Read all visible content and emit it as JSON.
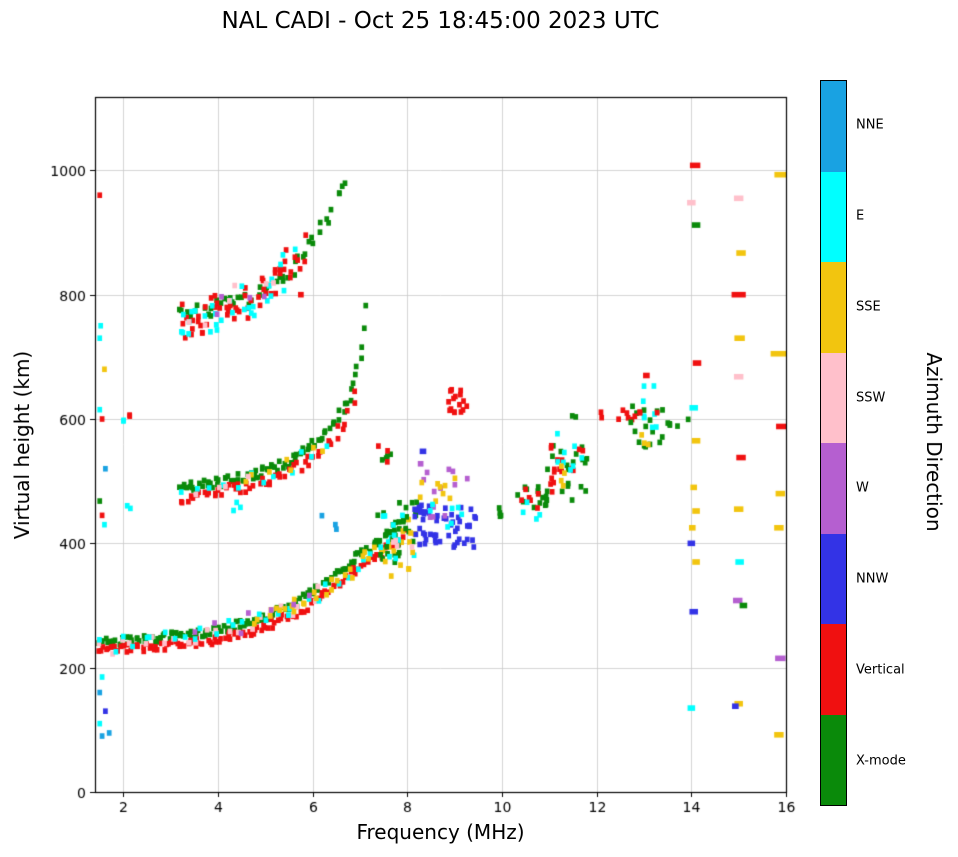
{
  "chart_data": {
    "type": "scatter",
    "title": "NAL CADI - Oct 25 18:45:00 2023 UTC",
    "xlabel": "Frequency (MHz)",
    "ylabel": "Virtual height (km)",
    "colorbar_label": "Azimuth Direction",
    "xlim": [
      1.4,
      16.0
    ],
    "ylim": [
      0,
      1118
    ],
    "xticks": [
      2,
      4,
      6,
      8,
      10,
      12,
      14,
      16
    ],
    "yticks": [
      0,
      200,
      400,
      600,
      800,
      1000
    ],
    "grid": true,
    "legend_position": "right-colorbar",
    "marker": {
      "width_mhz": 0.1,
      "height_km": 9
    },
    "categories": [
      {
        "name": "NNE",
        "color": "#19A2E2"
      },
      {
        "name": "E",
        "color": "#00FFFF"
      },
      {
        "name": "SSE",
        "color": "#F2C50F"
      },
      {
        "name": "SSW",
        "color": "#FFC0CB"
      },
      {
        "name": "W",
        "color": "#B55FD0"
      },
      {
        "name": "NNW",
        "color": "#3333E6"
      },
      {
        "name": "Vertical",
        "color": "#F01010"
      },
      {
        "name": "X-mode",
        "color": "#0A8A0A"
      }
    ],
    "traces": [
      {
        "name": "first-hop X-mode",
        "cat": "X-mode",
        "n": 150,
        "jf": 0.06,
        "jh": 7,
        "points": [
          [
            1.45,
            240
          ],
          [
            2.0,
            244
          ],
          [
            2.6,
            247
          ],
          [
            3.2,
            251
          ],
          [
            3.8,
            257
          ],
          [
            4.3,
            265
          ],
          [
            4.8,
            276
          ],
          [
            5.2,
            288
          ],
          [
            5.6,
            303
          ],
          [
            6.0,
            322
          ],
          [
            6.4,
            344
          ],
          [
            6.8,
            368
          ],
          [
            7.2,
            392
          ],
          [
            7.6,
            415
          ],
          [
            7.95,
            438
          ]
        ]
      },
      {
        "name": "first-hop vertical",
        "cat": "Vertical",
        "n": 120,
        "jf": 0.06,
        "jh": 7,
        "points": [
          [
            1.45,
            226
          ],
          [
            2.0,
            230
          ],
          [
            2.6,
            233
          ],
          [
            3.2,
            237
          ],
          [
            3.8,
            243
          ],
          [
            4.3,
            251
          ],
          [
            4.8,
            261
          ],
          [
            5.2,
            272
          ],
          [
            5.6,
            286
          ],
          [
            6.0,
            304
          ],
          [
            6.4,
            325
          ],
          [
            6.8,
            348
          ],
          [
            7.2,
            372
          ],
          [
            7.6,
            394
          ],
          [
            7.95,
            415
          ]
        ]
      },
      {
        "name": "first-hop SSW",
        "cat": "SSW",
        "n": 22,
        "jf": 0.1,
        "jh": 12,
        "points": [
          [
            1.5,
            232
          ],
          [
            2.5,
            240
          ],
          [
            3.5,
            250
          ],
          [
            4.5,
            266
          ],
          [
            5.5,
            295
          ],
          [
            6.2,
            330
          ]
        ]
      },
      {
        "name": "first-hop E",
        "cat": "E",
        "n": 30,
        "jf": 0.12,
        "jh": 14,
        "points": [
          [
            1.6,
            238
          ],
          [
            3.0,
            248
          ],
          [
            4.5,
            268
          ],
          [
            5.5,
            295
          ],
          [
            6.3,
            335
          ],
          [
            6.8,
            360
          ],
          [
            7.2,
            385
          ],
          [
            7.7,
            408
          ]
        ]
      },
      {
        "name": "first-hop SSE",
        "cat": "SSE",
        "n": 32,
        "jf": 0.12,
        "jh": 14,
        "points": [
          [
            4.8,
            272
          ],
          [
            5.6,
            298
          ],
          [
            6.2,
            325
          ],
          [
            6.7,
            352
          ],
          [
            7.1,
            378
          ],
          [
            7.6,
            402
          ],
          [
            8.0,
            425
          ]
        ]
      },
      {
        "name": "first-hop W",
        "cat": "W",
        "n": 7,
        "jf": 0.2,
        "jh": 15,
        "points": [
          [
            3.5,
            252
          ],
          [
            5.0,
            280
          ],
          [
            6.0,
            320
          ]
        ]
      },
      {
        "name": "second-hop X-mode",
        "cat": "X-mode",
        "n": 85,
        "jf": 0.05,
        "jh": 8,
        "points": [
          [
            3.2,
            488
          ],
          [
            3.7,
            493
          ],
          [
            4.2,
            500
          ],
          [
            4.7,
            508
          ],
          [
            5.1,
            518
          ],
          [
            5.5,
            532
          ],
          [
            5.9,
            550
          ],
          [
            6.2,
            570
          ],
          [
            6.5,
            595
          ],
          [
            6.75,
            628
          ],
          [
            6.95,
            672
          ],
          [
            7.08,
            730
          ],
          [
            7.15,
            790
          ]
        ]
      },
      {
        "name": "second-hop vertical",
        "cat": "Vertical",
        "n": 55,
        "jf": 0.06,
        "jh": 9,
        "points": [
          [
            3.2,
            473
          ],
          [
            3.7,
            478
          ],
          [
            4.2,
            485
          ],
          [
            4.7,
            493
          ],
          [
            5.1,
            502
          ],
          [
            5.5,
            515
          ],
          [
            5.9,
            531
          ],
          [
            6.2,
            550
          ],
          [
            6.5,
            573
          ],
          [
            6.75,
            603
          ],
          [
            6.9,
            640
          ]
        ]
      },
      {
        "name": "second-hop E",
        "cat": "E",
        "n": 12,
        "jf": 0.12,
        "jh": 16,
        "points": [
          [
            3.3,
            480
          ],
          [
            4.0,
            492
          ],
          [
            4.8,
            505
          ],
          [
            5.6,
            530
          ],
          [
            6.3,
            570
          ]
        ]
      },
      {
        "name": "second-hop SSE",
        "cat": "SSE",
        "n": 7,
        "jf": 0.15,
        "jh": 14,
        "points": [
          [
            4.5,
            500
          ],
          [
            5.5,
            525
          ],
          [
            6.2,
            560
          ]
        ]
      },
      {
        "name": "second-hop SSW",
        "cat": "SSW",
        "n": 4,
        "jf": 0.15,
        "jh": 12,
        "points": [
          [
            3.6,
            485
          ],
          [
            4.6,
            502
          ]
        ]
      },
      {
        "name": "third-hop X-mode",
        "cat": "X-mode",
        "n": 50,
        "jf": 0.07,
        "jh": 12,
        "points": [
          [
            3.15,
            765
          ],
          [
            3.6,
            772
          ],
          [
            4.1,
            782
          ],
          [
            4.6,
            793
          ],
          [
            5.0,
            807
          ],
          [
            5.4,
            827
          ],
          [
            5.7,
            852
          ],
          [
            6.0,
            885
          ],
          [
            6.3,
            925
          ],
          [
            6.55,
            960
          ],
          [
            6.72,
            985
          ]
        ]
      },
      {
        "name": "third-hop vertical",
        "cat": "Vertical",
        "n": 55,
        "jf": 0.15,
        "jh": 30,
        "points": [
          [
            3.2,
            755
          ],
          [
            3.7,
            765
          ],
          [
            4.2,
            778
          ],
          [
            4.7,
            795
          ],
          [
            5.1,
            815
          ],
          [
            5.5,
            845
          ],
          [
            5.8,
            880
          ]
        ]
      },
      {
        "name": "third-hop E",
        "cat": "E",
        "n": 30,
        "jf": 0.18,
        "jh": 28,
        "points": [
          [
            3.1,
            748
          ],
          [
            3.6,
            758
          ],
          [
            4.2,
            770
          ],
          [
            4.7,
            788
          ],
          [
            5.2,
            812
          ],
          [
            5.6,
            845
          ]
        ]
      },
      {
        "name": "third-hop SSW",
        "cat": "SSW",
        "n": 6,
        "jf": 0.2,
        "jh": 25,
        "points": [
          [
            3.4,
            760
          ],
          [
            4.4,
            790
          ],
          [
            5.2,
            830
          ]
        ]
      },
      {
        "name": "third-hop W",
        "cat": "W",
        "n": 4,
        "jf": 0.2,
        "jh": 20,
        "points": [
          [
            3.9,
            780
          ],
          [
            4.8,
            810
          ]
        ]
      }
    ],
    "clusters": [
      {
        "f0": 7.35,
        "f1": 8.2,
        "h0": 365,
        "h1": 470,
        "cat": "X-mode",
        "n": 26
      },
      {
        "f0": 7.4,
        "f1": 8.15,
        "h0": 370,
        "h1": 450,
        "cat": "E",
        "n": 10
      },
      {
        "f0": 7.5,
        "f1": 8.2,
        "h0": 345,
        "h1": 420,
        "cat": "SSE",
        "n": 10
      },
      {
        "f0": 7.6,
        "f1": 8.1,
        "h0": 390,
        "h1": 435,
        "cat": "SSW",
        "n": 4
      },
      {
        "f0": 8.15,
        "f1": 9.45,
        "h0": 392,
        "h1": 462,
        "cat": "NNW",
        "n": 55
      },
      {
        "f0": 8.3,
        "f1": 9.35,
        "h0": 438,
        "h1": 520,
        "cat": "W",
        "n": 12
      },
      {
        "f0": 8.25,
        "f1": 9.05,
        "h0": 462,
        "h1": 505,
        "cat": "SSE",
        "n": 9
      },
      {
        "f0": 8.3,
        "f1": 9.25,
        "h0": 425,
        "h1": 468,
        "cat": "E",
        "n": 7
      },
      {
        "f0": 8.85,
        "f1": 9.3,
        "h0": 608,
        "h1": 655,
        "cat": "Vertical",
        "n": 16
      },
      {
        "f0": 7.3,
        "f1": 7.65,
        "h0": 515,
        "h1": 562,
        "cat": "X-mode",
        "n": 4
      },
      {
        "f0": 7.35,
        "f1": 7.6,
        "h0": 530,
        "h1": 560,
        "cat": "Vertical",
        "n": 3
      },
      {
        "f0": 9.8,
        "f1": 10.15,
        "h0": 438,
        "h1": 458,
        "cat": "X-mode",
        "n": 4
      },
      {
        "f0": 10.3,
        "f1": 11.0,
        "h0": 448,
        "h1": 500,
        "cat": "X-mode",
        "n": 14
      },
      {
        "f0": 10.35,
        "f1": 10.9,
        "h0": 455,
        "h1": 492,
        "cat": "Vertical",
        "n": 6
      },
      {
        "f0": 10.4,
        "f1": 10.8,
        "h0": 438,
        "h1": 468,
        "cat": "E",
        "n": 4
      },
      {
        "f0": 10.9,
        "f1": 11.8,
        "h0": 468,
        "h1": 560,
        "cat": "X-mode",
        "n": 20
      },
      {
        "f0": 10.95,
        "f1": 11.75,
        "h0": 478,
        "h1": 562,
        "cat": "Vertical",
        "n": 16
      },
      {
        "f0": 11.1,
        "f1": 11.7,
        "h0": 515,
        "h1": 578,
        "cat": "E",
        "n": 8
      },
      {
        "f0": 11.2,
        "f1": 11.6,
        "h0": 488,
        "h1": 532,
        "cat": "SSE",
        "n": 4
      },
      {
        "f0": 11.45,
        "f1": 11.6,
        "h0": 600,
        "h1": 615,
        "cat": "X-mode",
        "n": 2
      },
      {
        "f0": 12.05,
        "f1": 12.2,
        "h0": 600,
        "h1": 612,
        "cat": "Vertical",
        "n": 2
      },
      {
        "f0": 12.4,
        "f1": 12.75,
        "h0": 595,
        "h1": 618,
        "cat": "Vertical",
        "n": 5
      },
      {
        "f0": 12.7,
        "f1": 13.4,
        "h0": 545,
        "h1": 622,
        "cat": "X-mode",
        "n": 16
      },
      {
        "f0": 12.95,
        "f1": 13.35,
        "h0": 585,
        "h1": 658,
        "cat": "E",
        "n": 8
      },
      {
        "f0": 12.8,
        "f1": 13.3,
        "h0": 600,
        "h1": 618,
        "cat": "Vertical",
        "n": 4
      },
      {
        "f0": 12.85,
        "f1": 13.1,
        "h0": 558,
        "h1": 580,
        "cat": "SSE",
        "n": 3
      },
      {
        "f0": 13.5,
        "f1": 13.95,
        "h0": 578,
        "h1": 600,
        "cat": "X-mode",
        "n": 5
      },
      {
        "f0": 6.1,
        "f1": 6.6,
        "h0": 405,
        "h1": 450,
        "cat": "NNE",
        "n": 3
      },
      {
        "f0": 4.2,
        "f1": 4.6,
        "h0": 448,
        "h1": 466,
        "cat": "E",
        "n": 3
      },
      {
        "f0": 2.0,
        "f1": 2.15,
        "h0": 448,
        "h1": 465,
        "cat": "E",
        "n": 2
      },
      {
        "f0": 2.0,
        "f1": 2.2,
        "h0": 595,
        "h1": 615,
        "cat": "E",
        "n": 2
      },
      {
        "f0": 2.0,
        "f1": 2.15,
        "h0": 600,
        "h1": 612,
        "cat": "Vertical",
        "n": 2
      }
    ],
    "dashes": [
      [
        14.08,
        1008,
        "Vertical",
        0.22
      ],
      [
        14.0,
        948,
        "SSW",
        0.18
      ],
      [
        14.1,
        912,
        "X-mode",
        0.18
      ],
      [
        14.12,
        690,
        "Vertical",
        0.18
      ],
      [
        14.05,
        618,
        "E",
        0.18
      ],
      [
        14.1,
        565,
        "SSE",
        0.18
      ],
      [
        14.05,
        490,
        "SSE",
        0.14
      ],
      [
        14.1,
        452,
        "SSE",
        0.16
      ],
      [
        14.02,
        425,
        "SSE",
        0.14
      ],
      [
        14.0,
        400,
        "NNW",
        0.16
      ],
      [
        14.1,
        370,
        "SSE",
        0.16
      ],
      [
        14.05,
        290,
        "NNW",
        0.18
      ],
      [
        14.0,
        135,
        "E",
        0.16
      ],
      [
        15.0,
        955,
        "SSW",
        0.2
      ],
      [
        15.05,
        867,
        "SSE",
        0.2
      ],
      [
        15.0,
        800,
        "Vertical",
        0.3
      ],
      [
        15.02,
        730,
        "SSE",
        0.22
      ],
      [
        15.0,
        668,
        "SSW",
        0.2
      ],
      [
        15.05,
        538,
        "Vertical",
        0.2
      ],
      [
        15.0,
        455,
        "SSE",
        0.2
      ],
      [
        15.02,
        370,
        "E",
        0.18
      ],
      [
        14.98,
        308,
        "W",
        0.2
      ],
      [
        15.1,
        300,
        "X-mode",
        0.16
      ],
      [
        15.0,
        142,
        "SSE",
        0.18
      ],
      [
        14.93,
        138,
        "NNW",
        0.14
      ],
      [
        15.88,
        993,
        "SSE",
        0.25
      ],
      [
        15.85,
        705,
        "SSE",
        0.35
      ],
      [
        15.9,
        588,
        "Vertical",
        0.22
      ],
      [
        15.88,
        480,
        "SSE",
        0.2
      ],
      [
        15.85,
        425,
        "SSE",
        0.2
      ],
      [
        15.88,
        215,
        "W",
        0.22
      ],
      [
        15.85,
        92,
        "SSE",
        0.2
      ],
      [
        13.05,
        670,
        "Vertical",
        0.14
      ],
      [
        8.33,
        548,
        "NNW",
        0.14
      ],
      [
        8.28,
        528,
        "W",
        0.12
      ],
      [
        5.75,
        800,
        "Vertical",
        0.12
      ]
    ],
    "noise_points": [
      [
        1.5,
        960,
        "Vertical"
      ],
      [
        1.52,
        750,
        "E"
      ],
      [
        1.5,
        730,
        "E"
      ],
      [
        1.6,
        680,
        "SSE"
      ],
      [
        1.5,
        615,
        "E"
      ],
      [
        1.55,
        600,
        "Vertical"
      ],
      [
        1.62,
        520,
        "NNE"
      ],
      [
        1.5,
        468,
        "X-mode"
      ],
      [
        1.55,
        445,
        "Vertical"
      ],
      [
        1.6,
        430,
        "E"
      ],
      [
        1.55,
        185,
        "E"
      ],
      [
        1.5,
        160,
        "NNE"
      ],
      [
        1.62,
        130,
        "NNW"
      ],
      [
        1.5,
        110,
        "E"
      ],
      [
        1.55,
        90,
        "NNE"
      ],
      [
        1.7,
        95,
        "NNE"
      ]
    ]
  }
}
